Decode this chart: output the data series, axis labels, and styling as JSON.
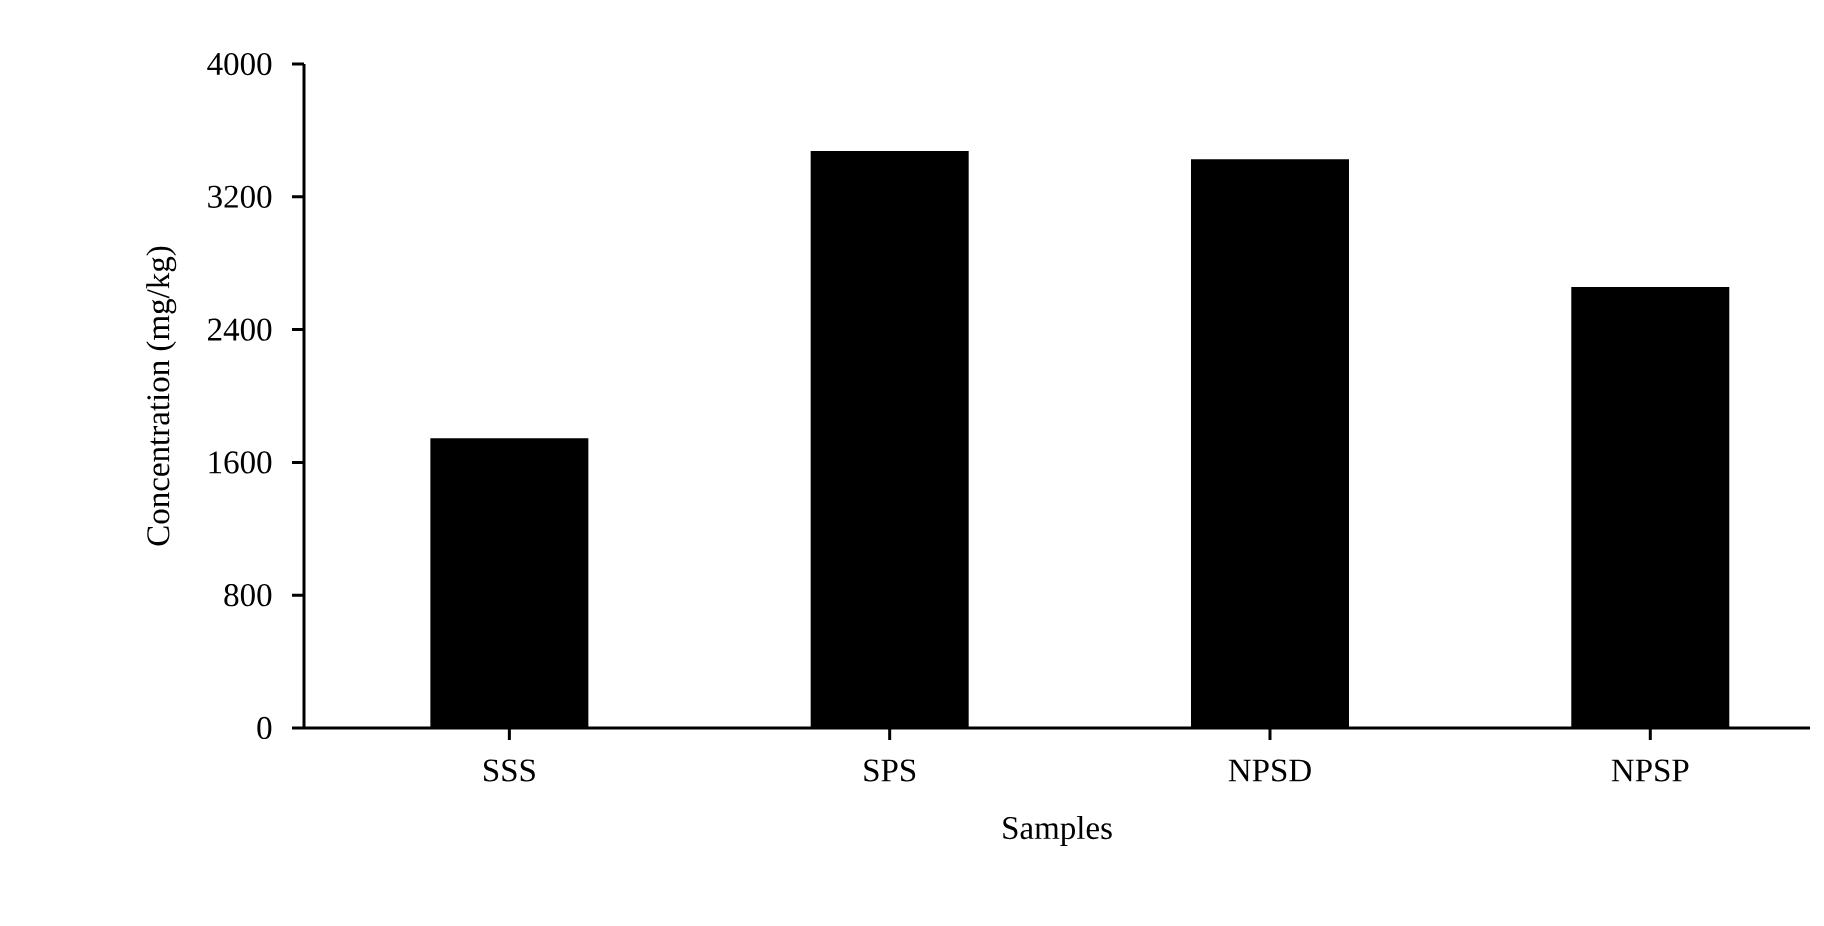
{
  "chart_data": {
    "type": "bar",
    "xlabel": "Samples",
    "ylabel": "Concentration (mg/kg)",
    "categories": [
      "SSS",
      "SPS",
      "NPSD",
      "NPSP"
    ],
    "values": [
      1740,
      3470,
      3420,
      2650
    ],
    "color": "#000000",
    "ylim": [
      0,
      4000
    ],
    "yticks": [
      0,
      800,
      1600,
      2400,
      3200,
      4000
    ],
    "grid": false
  }
}
